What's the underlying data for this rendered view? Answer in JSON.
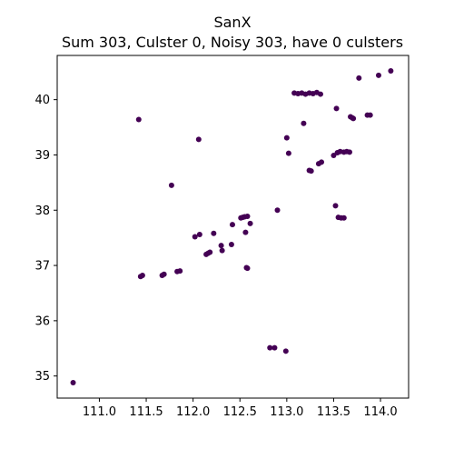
{
  "chart_data": {
    "type": "scatter",
    "title": "SanX",
    "subtitle": "Sum 303, Culster 0, Noisy 303, have 0 culsters",
    "xlabel": "",
    "ylabel": "",
    "xlim": [
      110.55,
      114.3
    ],
    "ylim": [
      34.6,
      40.8
    ],
    "x_ticks": [
      111.0,
      111.5,
      112.0,
      112.5,
      113.0,
      113.5,
      114.0
    ],
    "x_tick_labels": [
      "111.0",
      "111.5",
      "112.0",
      "112.5",
      "113.0",
      "113.5",
      "114.0"
    ],
    "y_ticks": [
      35,
      36,
      37,
      38,
      39,
      40
    ],
    "y_tick_labels": [
      "35",
      "36",
      "37",
      "38",
      "39",
      "40"
    ],
    "grid": false,
    "marker_color": "#440154",
    "series": [
      {
        "x": [
          110.72,
          111.44,
          111.46,
          111.67,
          111.69,
          111.83,
          111.86,
          111.77,
          112.06,
          112.02,
          112.07,
          112.14,
          112.16,
          112.18,
          112.22,
          112.3,
          112.31,
          112.41,
          112.42,
          112.51,
          112.53,
          112.55,
          112.58,
          112.56,
          112.61,
          112.57,
          112.58,
          112.82,
          112.87,
          112.99,
          112.9,
          113.0,
          113.02,
          113.08,
          113.12,
          113.16,
          113.2,
          113.24,
          113.28,
          113.32,
          113.36,
          113.18,
          113.24,
          113.26,
          113.34,
          113.37,
          113.5,
          113.54,
          113.57,
          113.61,
          113.64,
          113.67,
          113.53,
          113.52,
          113.55,
          113.58,
          113.61,
          113.68,
          113.7,
          113.71,
          113.77,
          113.86,
          113.89,
          113.98,
          114.11,
          111.42
        ],
        "y": [
          34.88,
          36.8,
          36.82,
          36.82,
          36.84,
          36.89,
          36.9,
          38.45,
          39.28,
          37.52,
          37.56,
          37.2,
          37.22,
          37.24,
          37.58,
          37.36,
          37.27,
          37.38,
          37.74,
          37.86,
          37.87,
          37.88,
          37.89,
          37.6,
          37.76,
          36.96,
          36.95,
          35.51,
          35.51,
          35.45,
          38.0,
          39.31,
          39.03,
          40.12,
          40.11,
          40.12,
          40.1,
          40.12,
          40.11,
          40.13,
          40.1,
          39.57,
          38.72,
          38.71,
          38.84,
          38.87,
          38.99,
          39.04,
          39.06,
          39.05,
          39.06,
          39.05,
          39.84,
          38.08,
          37.87,
          37.86,
          37.86,
          39.69,
          39.67,
          39.66,
          40.39,
          39.72,
          39.72,
          40.44,
          40.52,
          39.64
        ]
      }
    ]
  }
}
